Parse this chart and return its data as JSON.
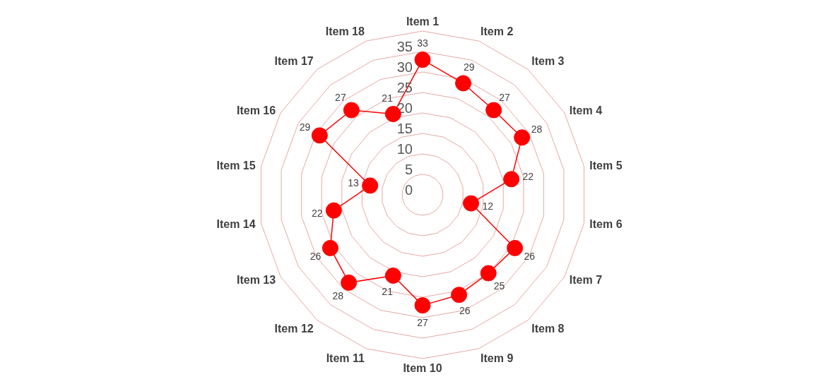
{
  "chart_data": {
    "type": "radar",
    "categories": [
      "Item 1",
      "Item 2",
      "Item 3",
      "Item 4",
      "Item 5",
      "Item 6",
      "Item 7",
      "Item 8",
      "Item 9",
      "Item 10",
      "Item 11",
      "Item 12",
      "Item 13",
      "Item 14",
      "Item 15",
      "Item 16",
      "Item 17",
      "Item 18"
    ],
    "series": [
      {
        "color": "#ff0000",
        "values": [
          33,
          29,
          27,
          28,
          22,
          12,
          26,
          25,
          26,
          27,
          21,
          28,
          26,
          22,
          13,
          29,
          27,
          21
        ]
      }
    ],
    "ylim": [
      0,
      40
    ],
    "yticks": [
      0,
      5,
      10,
      15,
      20,
      25,
      30,
      35
    ],
    "grid": true,
    "marker": "circle",
    "line_style": "solid",
    "data_labels": true
  }
}
